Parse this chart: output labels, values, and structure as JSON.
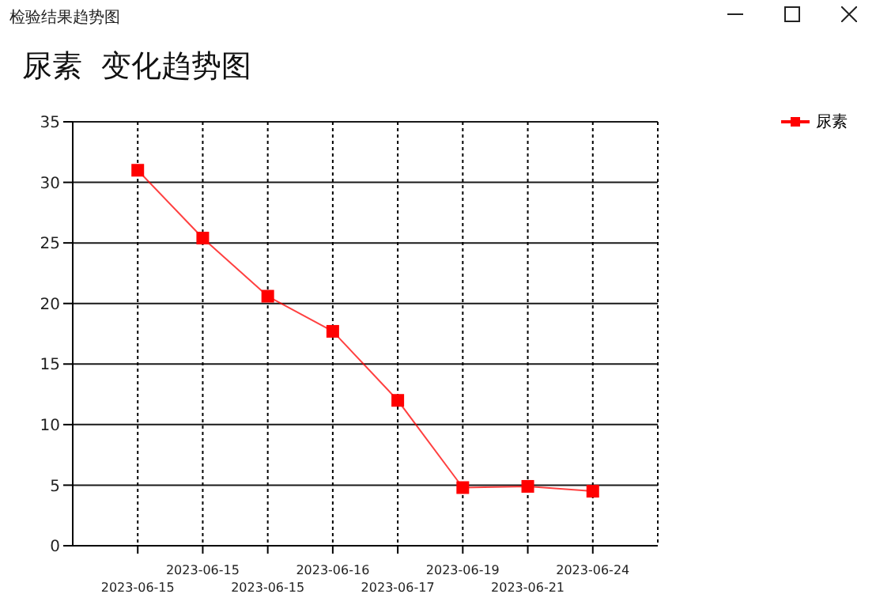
{
  "chart_data": {
    "type": "line",
    "title": "尿素  变化趋势图",
    "annotations": [
      "检验结果趋势图"
    ],
    "categories": [
      "2023-06-15",
      "2023-06-15",
      "2023-06-15",
      "2023-06-16",
      "2023-06-17",
      "2023-06-19",
      "2023-06-21",
      "2023-06-24"
    ],
    "series": [
      {
        "name": "尿素",
        "color": "#ff0000",
        "values": [
          31,
          25.4,
          20.6,
          17.7,
          12,
          4.8,
          4.9,
          4.5
        ]
      }
    ],
    "ylim": [
      0,
      35
    ],
    "yticks": [
      0,
      5,
      10,
      15,
      20,
      25,
      30,
      35
    ],
    "grid": true,
    "legend": "top right",
    "marker": "square",
    "line_style": "solid"
  }
}
